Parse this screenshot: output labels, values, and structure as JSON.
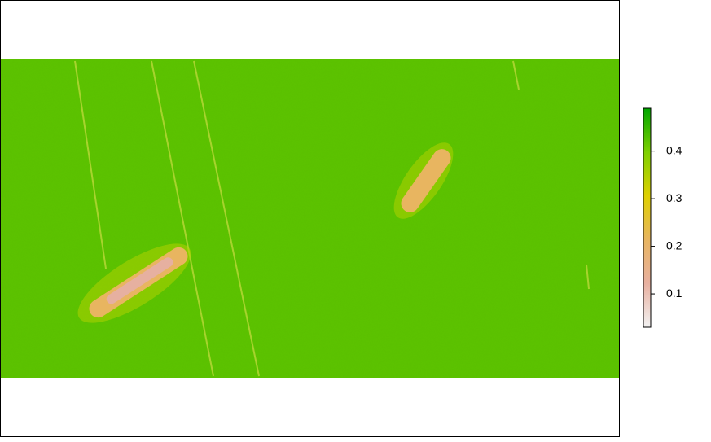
{
  "chart_data": {
    "type": "raster",
    "zlim": [
      0.03,
      0.49
    ],
    "zticks": [
      0.1,
      0.2,
      0.3,
      0.4
    ],
    "colors": [
      "#f2f2f2",
      "#e8b0a0",
      "#e8b560",
      "#dfd000",
      "#7ed000",
      "#00a600"
    ]
  }
}
